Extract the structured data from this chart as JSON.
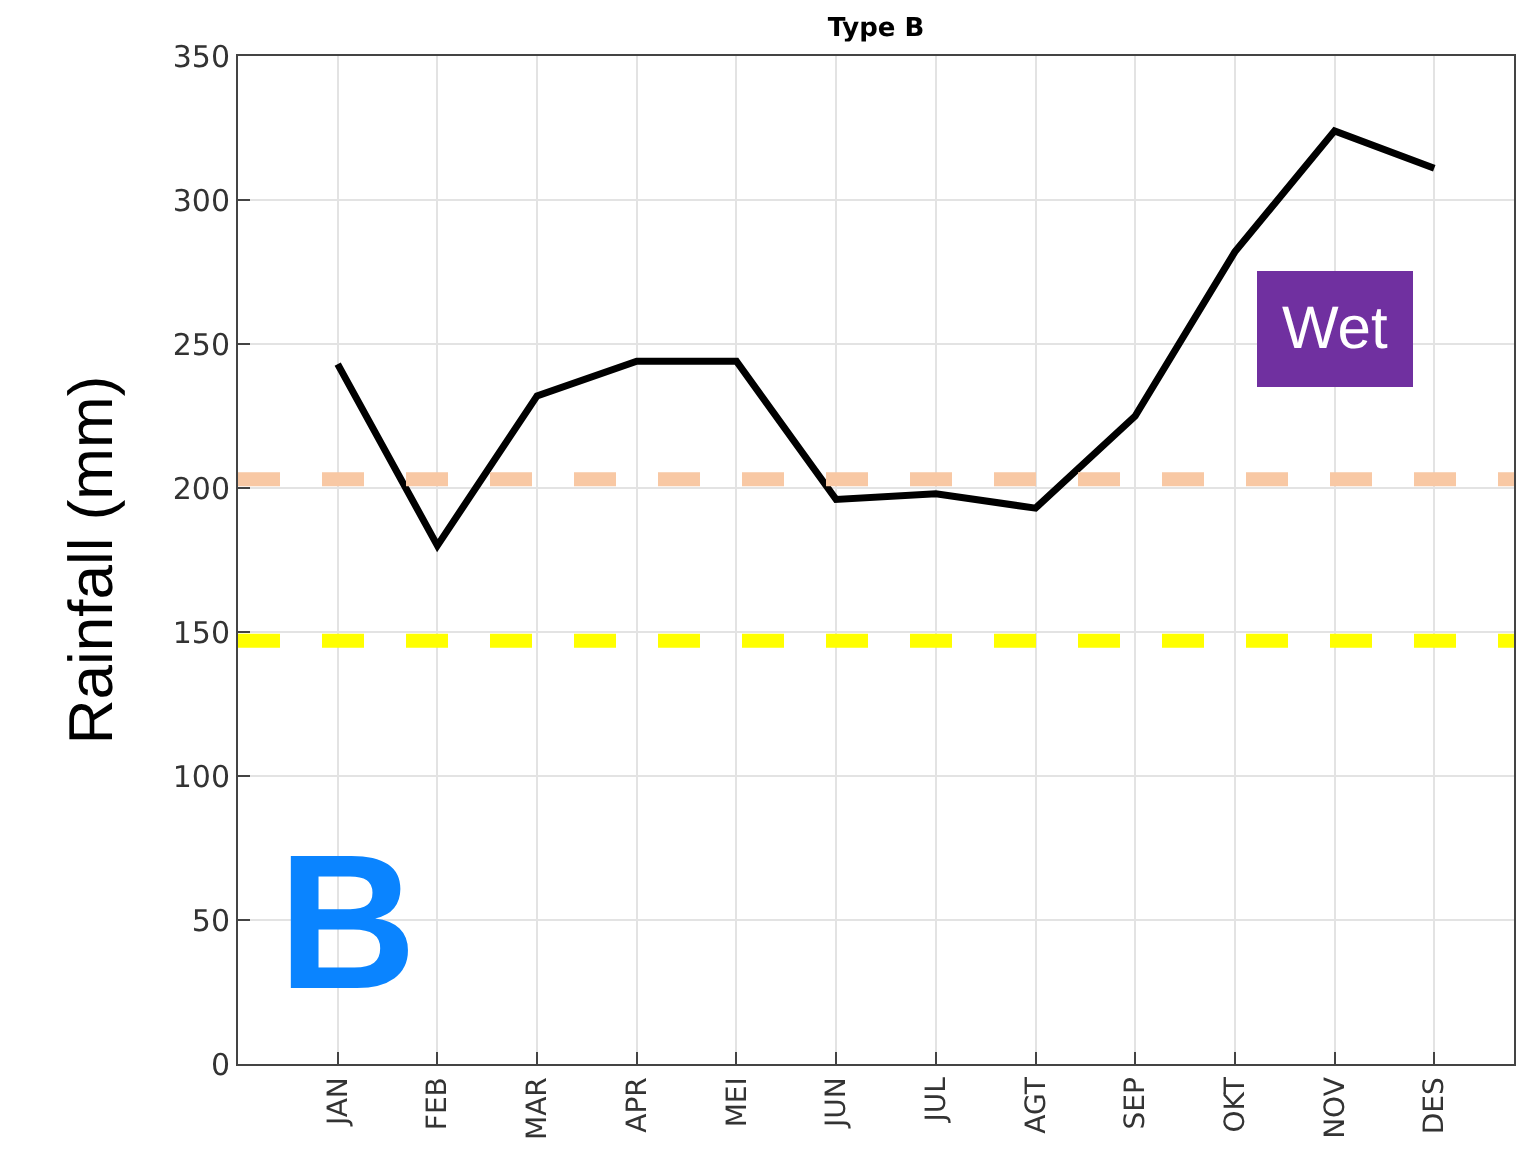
{
  "chart_data": {
    "type": "line",
    "title": "Type B",
    "ylabel": "Rainfall (mm)",
    "categories": [
      "JAN",
      "FEB",
      "MAR",
      "APR",
      "MEI",
      "JUN",
      "JUL",
      "AGT",
      "SEP",
      "OKT",
      "NOV",
      "DES"
    ],
    "series": [
      {
        "color": "#000000",
        "values": [
          243,
          180,
          232,
          244,
          244,
          196,
          198,
          193,
          225,
          282,
          324,
          311
        ]
      }
    ],
    "ylim": [
      0,
      350
    ],
    "yticks": [
      0,
      50,
      100,
      150,
      200,
      250,
      300,
      350
    ],
    "ref_lines": [
      {
        "axis": "y",
        "value": 203,
        "color": "#f8c8a4",
        "line_style": "dashed"
      },
      {
        "axis": "y",
        "value": 147,
        "color": "#ffff00",
        "line_style": "dashed"
      }
    ],
    "annotations": [
      "Wet",
      "B"
    ],
    "grid": true,
    "marker": "none",
    "line_style": "solid"
  }
}
